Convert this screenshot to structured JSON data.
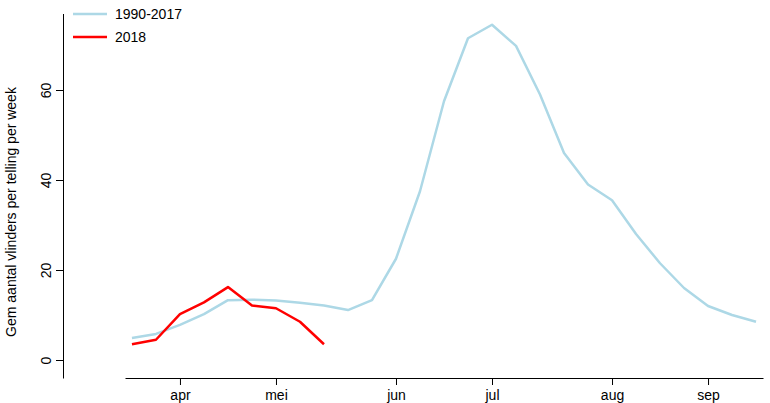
{
  "chart_data": {
    "type": "line",
    "categories": [
      null,
      null,
      "apr",
      null,
      null,
      null,
      "mei",
      null,
      null,
      null,
      null,
      "jun",
      null,
      null,
      null,
      "jul",
      null,
      null,
      null,
      null,
      "aug",
      null,
      null,
      null,
      "sep",
      null,
      null
    ],
    "series": [
      {
        "name": "1990-2017",
        "color": "#add8e6",
        "values": [
          4.9,
          5.8,
          7.8,
          10.2,
          13.3,
          13.4,
          13.2,
          12.7,
          12.1,
          11.1,
          13.3,
          22.5,
          37.5,
          57.5,
          71.5,
          74.5,
          69.8,
          59,
          46,
          39,
          35.5,
          28,
          21.5,
          16,
          12,
          10,
          8.5
        ]
      },
      {
        "name": "2018",
        "color": "#ff0000",
        "values": [
          3.5,
          4.5,
          10.2,
          12.8,
          16.2,
          12.1,
          11.5,
          8.5,
          3.5,
          null,
          null,
          null,
          null,
          null,
          null,
          null,
          null,
          null,
          null,
          null,
          null,
          null,
          null,
          null,
          null,
          null,
          null
        ]
      }
    ],
    "ylabel": "Gem aantal vlinders per telling per week",
    "ylim": [
      -4,
      77
    ],
    "yticks": [
      0,
      20,
      40,
      60
    ],
    "legend": "top-left",
    "grid": false
  }
}
